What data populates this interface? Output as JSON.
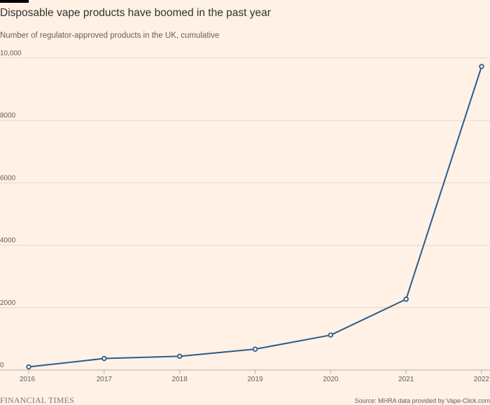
{
  "title": "Disposable vape products have boomed in the past year",
  "subtitle": "Number of regulator-approved products in the UK, cumulative",
  "footer": {
    "brand": "FINANCIAL TIMES",
    "source": "Source: MHRA data provided by Vape-Click.com"
  },
  "colors": {
    "background": "#FFF1E5",
    "line": "#2D5B8A",
    "marker_fill": "#FFFFFF",
    "grid": "#E3D6CB",
    "text": "#33302E",
    "muted_text": "#66605C"
  },
  "chart_data": {
    "type": "line",
    "title": "Disposable vape products have boomed in the past year",
    "subtitle": "Number of regulator-approved products in the UK, cumulative",
    "xlabel": "",
    "ylabel": "",
    "categories": [
      "2016",
      "2017",
      "2018",
      "2019",
      "2020",
      "2021",
      "2022"
    ],
    "series": [
      {
        "values": [
          100,
          370,
          440,
          670,
          1120,
          2270,
          9730
        ]
      }
    ],
    "ylim": [
      0,
      10000
    ],
    "y_ticks": [
      0,
      2000,
      4000,
      6000,
      8000,
      10000
    ],
    "y_tick_labels": [
      "0",
      "2000",
      "4000",
      "6000",
      "8000",
      "10,000"
    ],
    "grid": true,
    "legend": "none"
  }
}
